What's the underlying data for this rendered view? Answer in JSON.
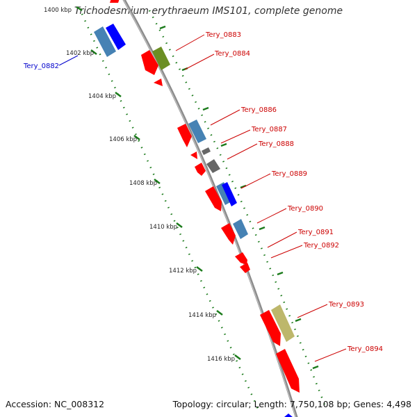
{
  "title": "Trichodesmium erythraeum IMS101, complete genome",
  "footer": {
    "accession": "Accession: NC_008312",
    "summary": "Topology: circular; Length: 7,750,108 bp; Genes: 4,498"
  },
  "colors": {
    "backbone": "#8c8c8c",
    "ruler": "#1a7a1a",
    "label_forward": "#cc0000",
    "label_reverse": "#0000cc"
  },
  "ruler_labels": [
    "1400 kbp",
    "1402 kbp",
    "1404 kbp",
    "1406 kbp",
    "1408 kbp",
    "1410 kbp",
    "1412 kbp",
    "1414 kbp",
    "1416 kbp"
  ],
  "gene_labels": {
    "g0882": "Tery_0882",
    "g0883": "Tery_0883",
    "g0884": "Tery_0884",
    "g0886": "Tery_0886",
    "g0887": "Tery_0887",
    "g0888": "Tery_0888",
    "g0889": "Tery_0889",
    "g0890": "Tery_0890",
    "g0891": "Tery_0891",
    "g0892": "Tery_0892",
    "g0893": "Tery_0893",
    "g0894": "Tery_0894"
  },
  "feature_colors": {
    "red": "#ff0000",
    "steel": "#4682b4",
    "blue": "#0000ff",
    "olive": "#6b8e23",
    "grey": "#666666",
    "khaki": "#bdb76b"
  }
}
